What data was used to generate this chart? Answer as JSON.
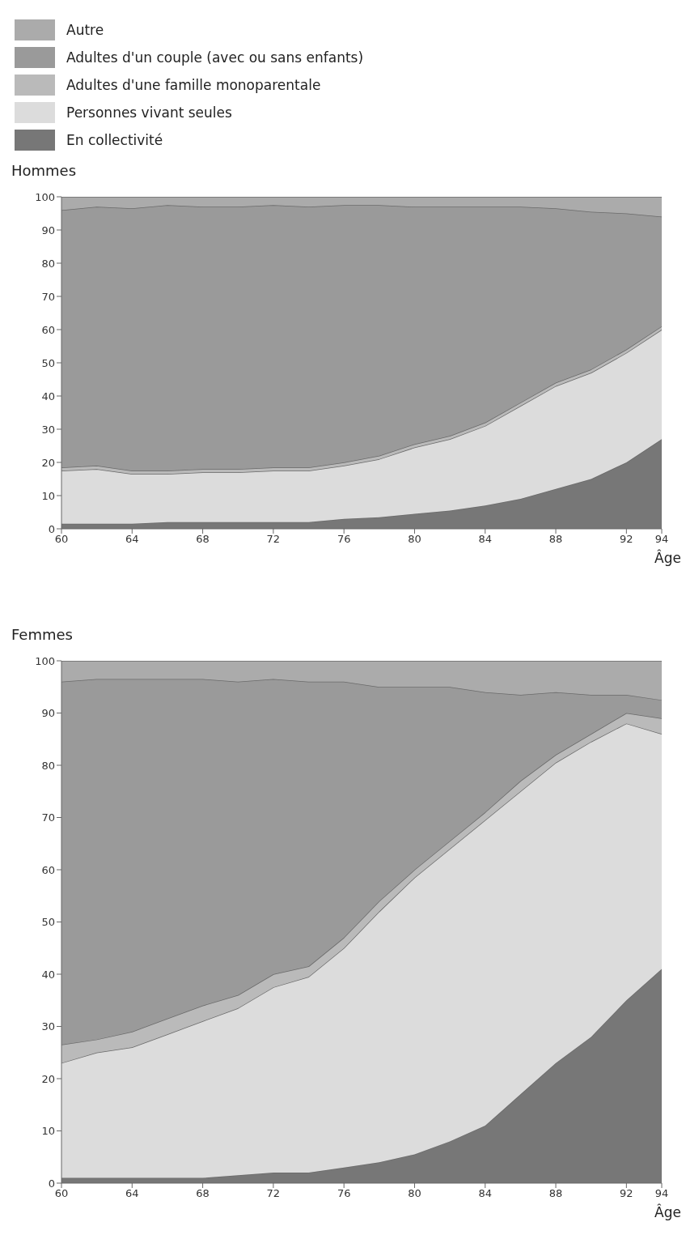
{
  "chart_data": [
    {
      "type": "area",
      "stacked": true,
      "title": "Hommes",
      "xlabel": "Âge",
      "legend": "top left",
      "x": [
        60,
        62,
        64,
        66,
        68,
        70,
        72,
        74,
        76,
        78,
        80,
        82,
        84,
        86,
        88,
        90,
        92,
        94
      ],
      "xlim": [
        60,
        94
      ],
      "xticks": [
        60,
        64,
        68,
        72,
        76,
        80,
        84,
        88,
        92,
        94
      ],
      "ylim": [
        0,
        100
      ],
      "yticks": [
        0,
        10,
        20,
        30,
        40,
        50,
        60,
        70,
        80,
        90,
        100
      ],
      "series": [
        {
          "name": "En collectivité",
          "color": "#777777",
          "values": [
            1.5,
            1.5,
            1.5,
            2,
            2,
            2,
            2,
            2,
            3,
            3.5,
            4.5,
            5.5,
            7,
            9,
            12,
            15,
            20,
            27
          ]
        },
        {
          "name": "Personnes vivant seules",
          "color": "#dcdcdc",
          "values": [
            16,
            16.5,
            15,
            14.5,
            15,
            15,
            15.5,
            15.5,
            16,
            17.5,
            20,
            21.5,
            24,
            28,
            31,
            32,
            33,
            33
          ]
        },
        {
          "name": "Adultes d'une famille monoparentale",
          "color": "#bababa",
          "values": [
            1,
            1,
            1,
            1,
            1,
            1,
            1,
            1,
            1,
            1,
            1,
            1,
            1,
            1,
            1,
            1,
            1,
            1
          ]
        },
        {
          "name": "Adultes d'un couple (avec ou sans enfants)",
          "color": "#9a9a9a",
          "values": [
            77.5,
            78,
            79,
            80,
            79,
            79,
            79,
            78.5,
            77.5,
            75.5,
            71.5,
            69,
            65,
            59,
            52.5,
            47.5,
            41,
            33
          ]
        },
        {
          "name": "Autre",
          "color": "#ababab",
          "values": [
            4,
            3,
            3.5,
            2.5,
            3,
            3,
            2.5,
            3,
            2.5,
            2.5,
            3,
            3,
            3,
            3,
            3.5,
            4.5,
            5,
            6
          ]
        }
      ]
    },
    {
      "type": "area",
      "stacked": true,
      "title": "Femmes",
      "xlabel": "Âge",
      "x": [
        60,
        62,
        64,
        66,
        68,
        70,
        72,
        74,
        76,
        78,
        80,
        82,
        84,
        86,
        88,
        90,
        92,
        94
      ],
      "xlim": [
        60,
        94
      ],
      "xticks": [
        60,
        64,
        68,
        72,
        76,
        80,
        84,
        88,
        92,
        94
      ],
      "ylim": [
        0,
        100
      ],
      "yticks": [
        0,
        10,
        20,
        30,
        40,
        50,
        60,
        70,
        80,
        90,
        100
      ],
      "series": [
        {
          "color": "#777777",
          "values": [
            1,
            1,
            1,
            1,
            1,
            1.5,
            2,
            2,
            3,
            4,
            5.5,
            8,
            11,
            17,
            23,
            28,
            35,
            41
          ]
        },
        {
          "color": "#dcdcdc",
          "values": [
            22,
            24,
            25,
            27.5,
            30,
            32,
            35.5,
            37.5,
            42,
            48,
            53,
            56,
            58.5,
            58,
            57.5,
            56.5,
            53,
            45
          ]
        },
        {
          "color": "#bababa",
          "values": [
            3.5,
            2.5,
            3,
            3,
            3,
            2.5,
            2.5,
            2,
            2,
            2,
            1.5,
            1.5,
            1.5,
            2,
            1.5,
            1.5,
            2,
            3
          ]
        },
        {
          "color": "#9a9a9a",
          "values": [
            69.5,
            69,
            67.5,
            65,
            62.5,
            60,
            56.5,
            54.5,
            49,
            41,
            35,
            29.5,
            23,
            16.5,
            12,
            7.5,
            3.5,
            3.5
          ]
        },
        {
          "color": "#ababab",
          "values": [
            4,
            3.5,
            3.5,
            3.5,
            3.5,
            4,
            3.5,
            4,
            4,
            5,
            5,
            5,
            6,
            6.5,
            6,
            6.5,
            6.5,
            7.5
          ]
        }
      ]
    }
  ]
}
